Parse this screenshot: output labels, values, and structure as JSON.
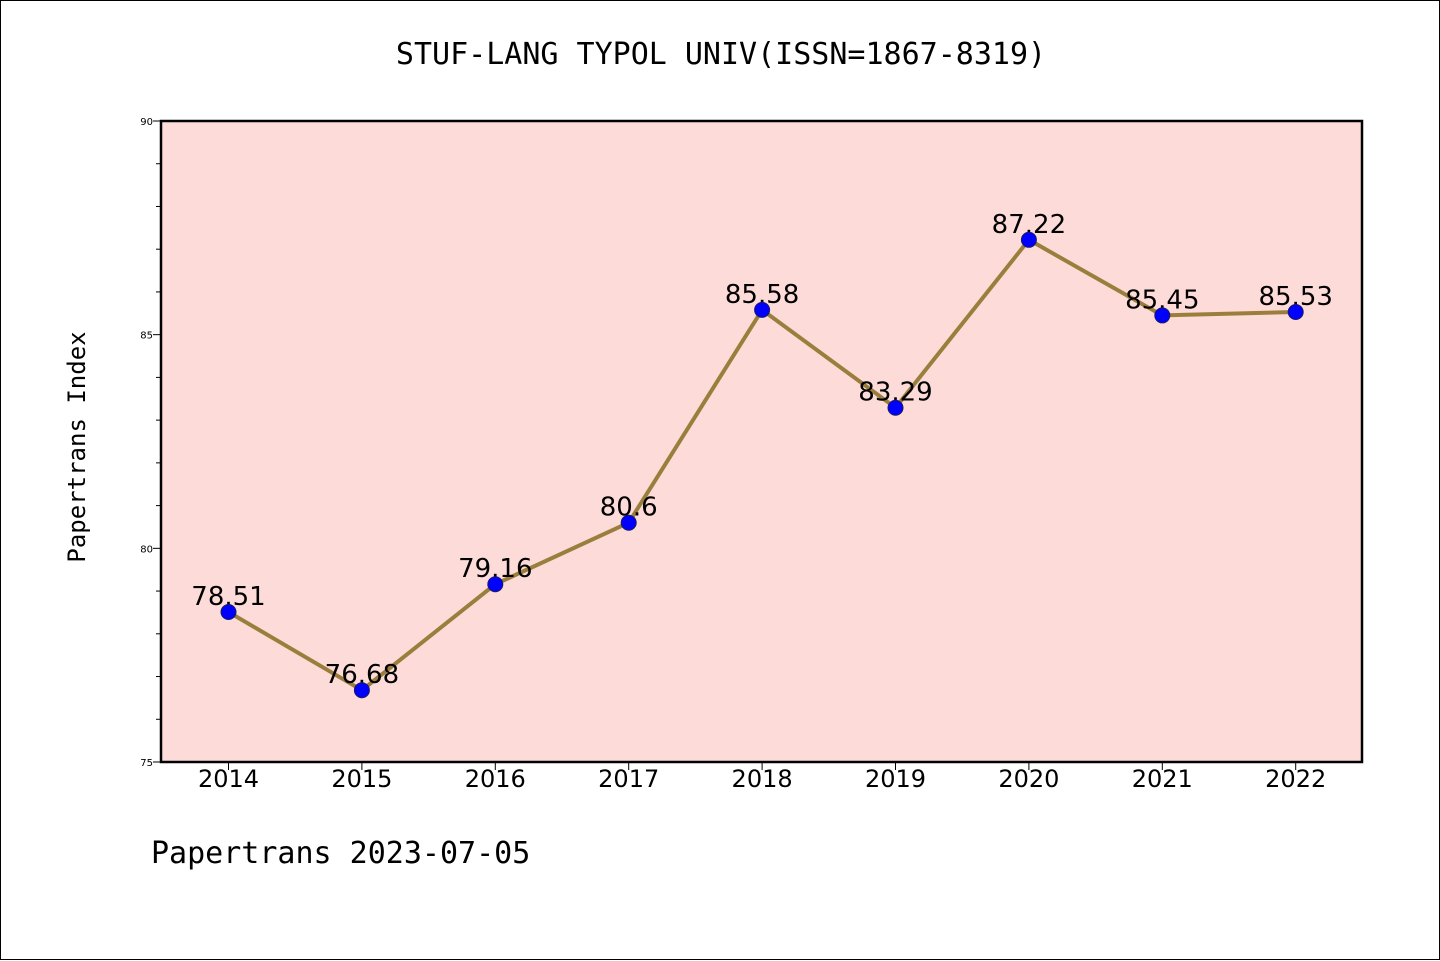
{
  "title": "STUF-LANG TYPOL UNIV(ISSN=1867-8319)",
  "footer": "Papertrans 2023-07-05",
  "colors": {
    "plot_background": "#fddbd8",
    "line": "#9a7f3c",
    "marker": "#0000ff"
  },
  "chart_data": {
    "type": "line",
    "title": "STUF-LANG TYPOL UNIV(ISSN=1867-8319)",
    "xlabel": "",
    "ylabel": "Papertrans Index",
    "categories": [
      "2014",
      "2015",
      "2016",
      "2017",
      "2018",
      "2019",
      "2020",
      "2021",
      "2022"
    ],
    "values": [
      78.51,
      76.68,
      79.16,
      80.6,
      85.58,
      83.29,
      87.22,
      85.45,
      85.53
    ],
    "data_labels": [
      "78.51",
      "76.68",
      "79.16",
      "80.6",
      "85.58",
      "83.29",
      "87.22",
      "85.45",
      "85.53"
    ],
    "ylim": [
      75,
      90
    ],
    "yticks": [
      "75",
      "80",
      "85",
      "90"
    ],
    "grid": false,
    "legend": "none"
  }
}
